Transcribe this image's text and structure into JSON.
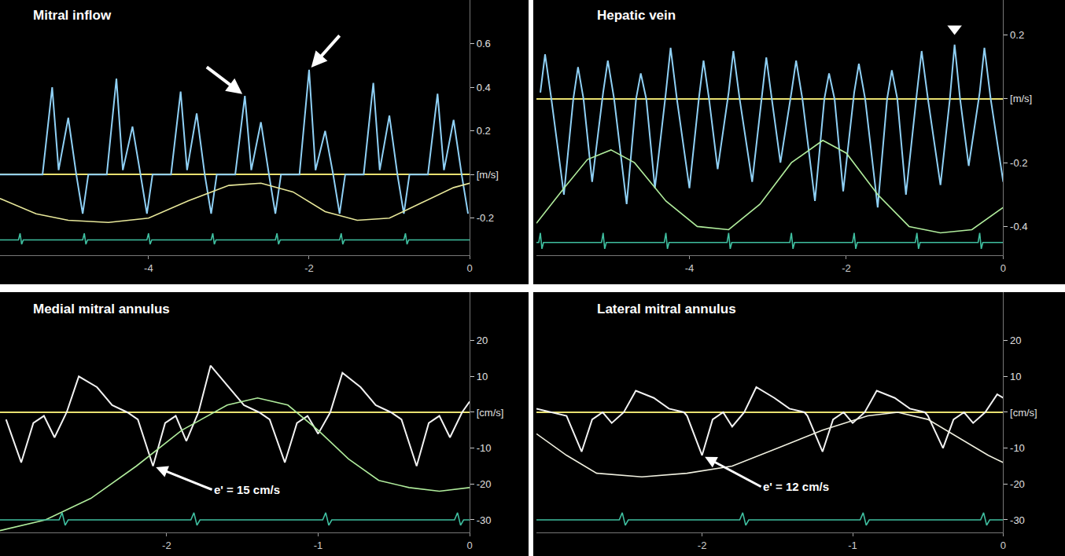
{
  "chart_data": [
    {
      "type": "line",
      "title": "Mitral inflow",
      "xlim": [
        -5.85,
        0
      ],
      "xticks": [
        -4,
        -2,
        0
      ],
      "ylim": [
        -0.37,
        0.8
      ],
      "yticks": [
        0.6,
        0.4,
        0.2,
        {
          "value": 0,
          "label": "[m/s]"
        },
        -0.2
      ],
      "grid": false,
      "series": [
        {
          "color": "#8fd0f5",
          "x": [
            -5.85,
            -5.32,
            -5.2,
            -5.12,
            -5.0,
            -4.9,
            -4.82,
            -4.75,
            -4.52,
            -4.4,
            -4.32,
            -4.2,
            -4.1,
            -4.02,
            -3.95,
            -3.72,
            -3.6,
            -3.52,
            -3.4,
            -3.3,
            -3.22,
            -3.15,
            -2.92,
            -2.8,
            -2.72,
            -2.6,
            -2.5,
            -2.42,
            -2.35,
            -2.12,
            -2.0,
            -1.92,
            -1.8,
            -1.7,
            -1.62,
            -1.55,
            -1.32,
            -1.2,
            -1.12,
            -1.0,
            -0.9,
            -0.82,
            -0.75,
            -0.52,
            -0.4,
            -0.32,
            -0.2,
            -0.1,
            -0.02
          ],
          "values": [
            0,
            0,
            0.4,
            0.02,
            0.26,
            0,
            -0.18,
            0,
            0,
            0.44,
            0.02,
            0.22,
            0,
            -0.18,
            0,
            0,
            0.38,
            0.02,
            0.28,
            0,
            -0.18,
            0,
            0,
            0.36,
            0.02,
            0.24,
            0,
            -0.18,
            0,
            0,
            0.48,
            0.02,
            0.2,
            0,
            -0.18,
            0,
            0,
            0.42,
            0.02,
            0.27,
            0,
            -0.18,
            0,
            0,
            0.37,
            0.02,
            0.25,
            0,
            -0.18
          ]
        },
        {
          "color": "#e8e89a",
          "x": [
            -5.85,
            -5.4,
            -5.0,
            -4.5,
            -4.0,
            -3.5,
            -3.0,
            -2.6,
            -2.2,
            -1.8,
            -1.4,
            -1.0,
            -0.6,
            -0.2,
            0
          ],
          "values": [
            -0.11,
            -0.18,
            -0.21,
            -0.22,
            -0.2,
            -0.12,
            -0.05,
            -0.04,
            -0.08,
            -0.17,
            -0.21,
            -0.2,
            -0.13,
            -0.06,
            -0.04
          ]
        },
        {
          "color": "#3fbfa0",
          "x": [
            -5.85,
            -5.62,
            -5.6,
            -5.58,
            -5.56,
            -4.82,
            -4.8,
            -4.78,
            -4.76,
            -4.02,
            -4.0,
            -3.98,
            -3.96,
            -3.22,
            -3.2,
            -3.18,
            -3.16,
            -2.42,
            -2.4,
            -2.38,
            -2.36,
            -1.62,
            -1.6,
            -1.58,
            -1.56,
            -0.82,
            -0.8,
            -0.78,
            -0.76,
            0
          ],
          "values": [
            -0.3,
            -0.3,
            -0.27,
            -0.32,
            -0.3,
            -0.3,
            -0.27,
            -0.32,
            -0.3,
            -0.3,
            -0.27,
            -0.32,
            -0.3,
            -0.3,
            -0.27,
            -0.32,
            -0.3,
            -0.3,
            -0.27,
            -0.32,
            -0.3,
            -0.3,
            -0.27,
            -0.32,
            -0.3,
            -0.3,
            -0.27,
            -0.32,
            -0.3,
            -0.3
          ]
        }
      ],
      "annotations": [
        {
          "x": -2.8,
          "y": 0.36
        },
        {
          "x": -2.0,
          "y": 0.48
        }
      ]
    },
    {
      "type": "line",
      "title": "Hepatic vein",
      "xlim": [
        -5.95,
        0
      ],
      "xticks": [
        -4,
        -2,
        0
      ],
      "ylim": [
        -0.49,
        0.31
      ],
      "yticks": [
        0.2,
        {
          "value": 0,
          "label": "[m/s]"
        },
        -0.2,
        -0.4
      ],
      "grid": false,
      "series": [
        {
          "color": "#8fd0f5",
          "x": [
            -5.9,
            -5.84,
            -5.76,
            -5.6,
            -5.48,
            -5.42,
            -5.35,
            -5.24,
            -5.1,
            -5.04,
            -4.96,
            -4.8,
            -4.68,
            -4.62,
            -4.55,
            -4.44,
            -4.3,
            -4.24,
            -4.16,
            -4.0,
            -3.88,
            -3.82,
            -3.75,
            -3.64,
            -3.5,
            -3.44,
            -3.36,
            -3.2,
            -3.08,
            -3.02,
            -2.95,
            -2.84,
            -2.7,
            -2.64,
            -2.56,
            -2.4,
            -2.28,
            -2.22,
            -2.15,
            -2.04,
            -1.9,
            -1.84,
            -1.76,
            -1.6,
            -1.48,
            -1.42,
            -1.35,
            -1.24,
            -1.1,
            -1.04,
            -0.96,
            -0.8,
            -0.68,
            -0.62,
            -0.55,
            -0.44,
            -0.3,
            -0.24,
            -0.16,
            0
          ],
          "values": [
            0.02,
            0.14,
            0,
            -0.3,
            0,
            0.1,
            0,
            -0.26,
            0.02,
            0.12,
            0,
            -0.33,
            0,
            0.08,
            0,
            -0.28,
            0.02,
            0.16,
            0,
            -0.28,
            0,
            0.12,
            0,
            -0.22,
            0.02,
            0.15,
            0,
            -0.26,
            0,
            0.13,
            0,
            -0.2,
            0.02,
            0.12,
            0,
            -0.32,
            0,
            0.08,
            0,
            -0.29,
            0.02,
            0.11,
            0,
            -0.34,
            0,
            0.09,
            0,
            -0.3,
            0.02,
            0.15,
            0,
            -0.27,
            0,
            0.17,
            0,
            -0.21,
            0.02,
            0.16,
            0,
            -0.26
          ]
        },
        {
          "color": "#b0ec9c",
          "x": [
            -5.95,
            -5.6,
            -5.3,
            -5.0,
            -4.7,
            -4.3,
            -3.9,
            -3.5,
            -3.1,
            -2.7,
            -2.3,
            -2.0,
            -1.6,
            -1.2,
            -0.8,
            -0.4,
            0
          ],
          "values": [
            -0.39,
            -0.28,
            -0.19,
            -0.16,
            -0.2,
            -0.32,
            -0.4,
            -0.41,
            -0.33,
            -0.2,
            -0.13,
            -0.17,
            -0.3,
            -0.4,
            -0.42,
            -0.41,
            -0.34
          ]
        },
        {
          "color": "#3fbfa0",
          "x": [
            -5.95,
            -5.92,
            -5.9,
            -5.88,
            -5.86,
            -5.12,
            -5.1,
            -5.08,
            -5.06,
            -4.32,
            -4.3,
            -4.28,
            -4.26,
            -3.52,
            -3.5,
            -3.48,
            -3.46,
            -2.72,
            -2.7,
            -2.68,
            -2.66,
            -1.92,
            -1.9,
            -1.88,
            -1.86,
            -1.12,
            -1.1,
            -1.08,
            -1.06,
            -0.32,
            -0.3,
            -0.28,
            -0.26,
            0
          ],
          "values": [
            -0.45,
            -0.45,
            -0.42,
            -0.47,
            -0.45,
            -0.45,
            -0.42,
            -0.47,
            -0.45,
            -0.45,
            -0.42,
            -0.47,
            -0.45,
            -0.45,
            -0.42,
            -0.47,
            -0.45,
            -0.45,
            -0.42,
            -0.47,
            -0.45,
            -0.45,
            -0.42,
            -0.47,
            -0.45,
            -0.45,
            -0.42,
            -0.47,
            -0.45,
            -0.45,
            -0.42,
            -0.47,
            -0.45,
            -0.45
          ]
        }
      ],
      "annotations": [
        {
          "x": -0.62,
          "y": 0.22,
          "marker": "triangle-down"
        }
      ]
    },
    {
      "type": "line",
      "title": "Medial mitral annulus",
      "xlim": [
        -3.1,
        0
      ],
      "xticks": [
        -2,
        -1,
        0
      ],
      "ylim": [
        -33.5,
        33.5
      ],
      "yticks": [
        20,
        10,
        {
          "value": 0,
          "label": "[cm/s]"
        },
        -10,
        -20,
        -30
      ],
      "grid": false,
      "series": [
        {
          "color": "#f2f2f2",
          "x": [
            -3.06,
            -2.96,
            -2.88,
            -2.81,
            -2.74,
            -2.66,
            -2.58,
            -2.46,
            -2.36,
            -2.26,
            -2.19,
            -2.09,
            -2.01,
            -1.94,
            -1.87,
            -1.79,
            -1.71,
            -1.59,
            -1.49,
            -1.39,
            -1.32,
            -1.22,
            -1.14,
            -1.07,
            -1.0,
            -0.92,
            -0.84,
            -0.72,
            -0.62,
            -0.52,
            -0.45,
            -0.35,
            -0.27,
            -0.2,
            -0.13,
            -0.05,
            0
          ],
          "values": [
            -2,
            -14,
            -3,
            -1,
            -7,
            0,
            10,
            7,
            2,
            0,
            -2,
            -15,
            -3,
            -1,
            -8,
            0,
            13,
            7,
            2,
            0,
            -2,
            -14,
            -3,
            -1,
            -6,
            0,
            11,
            7,
            2,
            0,
            -2,
            -15,
            -3,
            -1,
            -7,
            0,
            3
          ]
        },
        {
          "color": "#b0ec9c",
          "x": [
            -3.1,
            -2.8,
            -2.5,
            -2.2,
            -1.9,
            -1.6,
            -1.4,
            -1.2,
            -1.0,
            -0.8,
            -0.6,
            -0.4,
            -0.2,
            0
          ],
          "values": [
            -33,
            -30,
            -24,
            -15,
            -5,
            2,
            4,
            2,
            -5,
            -13,
            -19,
            -21,
            -22,
            -21
          ]
        },
        {
          "color": "#3fbfa0",
          "x": [
            -3.1,
            -2.71,
            -2.69,
            -2.67,
            -2.65,
            -1.84,
            -1.82,
            -1.8,
            -1.78,
            -0.97,
            -0.95,
            -0.93,
            -0.91,
            -0.1,
            -0.08,
            -0.06,
            -0.04,
            0
          ],
          "values": [
            -30,
            -30,
            -28,
            -31.5,
            -30,
            -30,
            -28,
            -31.5,
            -30,
            -30,
            -28,
            -31.5,
            -30,
            -30,
            -28,
            -31.5,
            -30,
            -30
          ]
        }
      ],
      "annotations": [
        {
          "x": -2.09,
          "y": -15,
          "text": "e' = 15 cm/s"
        }
      ]
    },
    {
      "type": "line",
      "title": "Lateral mitral annulus",
      "xlim": [
        -3.1,
        0
      ],
      "xticks": [
        -2,
        -1,
        0
      ],
      "ylim": [
        -33.5,
        33.5
      ],
      "yticks": [
        20,
        10,
        {
          "value": 0,
          "label": "[cm/s]"
        },
        -10,
        -20,
        -30
      ],
      "grid": false,
      "series": [
        {
          "color": "#f2f2f2",
          "x": [
            -3.1,
            -2.9,
            -2.8,
            -2.73,
            -2.66,
            -2.6,
            -2.52,
            -2.44,
            -2.32,
            -2.22,
            -2.12,
            -2.1,
            -2.0,
            -1.93,
            -1.86,
            -1.8,
            -1.72,
            -1.64,
            -1.52,
            -1.42,
            -1.32,
            -1.3,
            -1.2,
            -1.13,
            -1.06,
            -1.0,
            -0.92,
            -0.84,
            -0.72,
            -0.62,
            -0.52,
            -0.5,
            -0.4,
            -0.33,
            -0.26,
            -0.2,
            -0.12,
            -0.04,
            0
          ],
          "values": [
            1,
            -1,
            -11,
            -2,
            0,
            -3,
            0,
            6,
            4,
            1,
            0,
            -1,
            -12,
            -2,
            0,
            -4,
            0,
            7,
            4,
            1,
            0,
            -1,
            -11,
            -2,
            0,
            -3,
            0,
            6,
            4,
            1,
            0,
            -1,
            -10,
            -2,
            0,
            -3,
            0,
            5,
            4
          ]
        },
        {
          "color": "#f0f0e0",
          "x": [
            -3.1,
            -2.9,
            -2.7,
            -2.4,
            -2.1,
            -1.8,
            -1.5,
            -1.2,
            -0.9,
            -0.7,
            -0.5,
            -0.3,
            -0.1,
            0
          ],
          "values": [
            -6,
            -12,
            -17,
            -18,
            -17,
            -15,
            -10,
            -5,
            -1,
            0,
            -2,
            -7,
            -12,
            -14
          ]
        },
        {
          "color": "#3fbfa0",
          "x": [
            -3.1,
            -2.55,
            -2.53,
            -2.51,
            -2.49,
            -1.75,
            -1.73,
            -1.71,
            -1.69,
            -0.95,
            -0.93,
            -0.91,
            -0.89,
            -0.15,
            -0.13,
            -0.11,
            -0.09,
            0
          ],
          "values": [
            -30,
            -30,
            -28,
            -31.5,
            -30,
            -30,
            -28,
            -31.5,
            -30,
            -30,
            -28,
            -31.5,
            -30,
            -30,
            -28,
            -31.5,
            -30,
            -30
          ]
        }
      ],
      "annotations": [
        {
          "x": -2.0,
          "y": -12,
          "text": "e' = 12 cm/s"
        }
      ]
    }
  ]
}
